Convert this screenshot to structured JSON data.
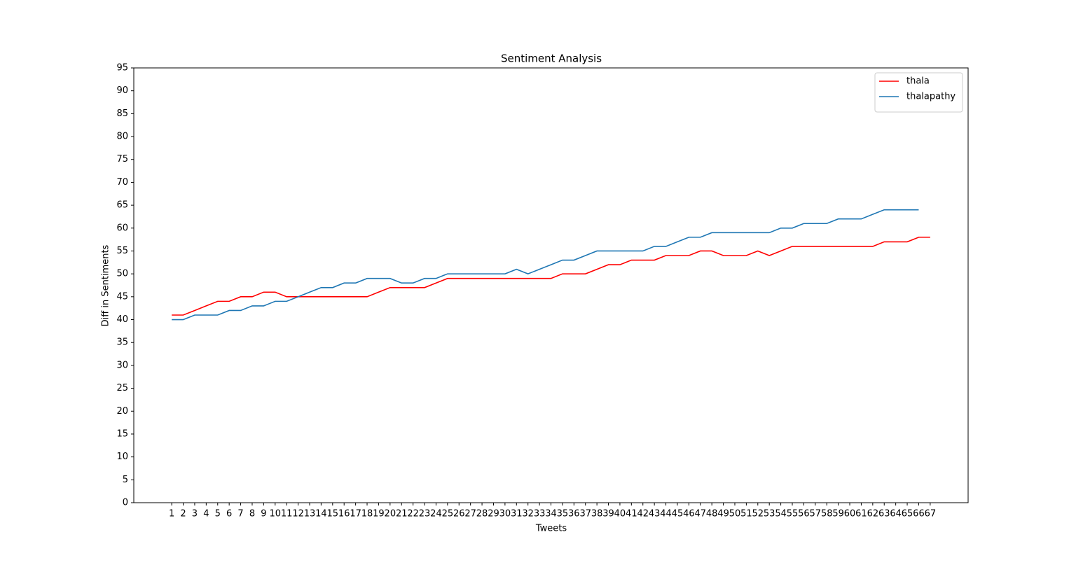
{
  "chart_data": {
    "type": "line",
    "title": "Sentiment Analysis",
    "x_label": "Tweets",
    "y_label": "Diff in Sentiments",
    "x": [
      1,
      2,
      3,
      4,
      5,
      6,
      7,
      8,
      9,
      10,
      11,
      12,
      13,
      14,
      15,
      16,
      17,
      18,
      19,
      20,
      21,
      22,
      23,
      24,
      25,
      26,
      27,
      28,
      29,
      30,
      31,
      32,
      33,
      34,
      35,
      36,
      37,
      38,
      39,
      40,
      41,
      42,
      43,
      44,
      45,
      46,
      47,
      48,
      49,
      50,
      51,
      52,
      53,
      54,
      55,
      56,
      57,
      58,
      59,
      60,
      61,
      62,
      63,
      64,
      65,
      66,
      67
    ],
    "series": [
      {
        "name": "thala",
        "color": "#ff0000",
        "values": [
          41,
          41,
          42,
          43,
          44,
          44,
          45,
          45,
          46,
          46,
          45,
          45,
          45,
          45,
          45,
          45,
          45,
          45,
          46,
          47,
          47,
          47,
          47,
          48,
          49,
          49,
          49,
          49,
          49,
          49,
          49,
          49,
          49,
          49,
          50,
          50,
          50,
          51,
          52,
          52,
          53,
          53,
          53,
          54,
          54,
          54,
          55,
          55,
          54,
          54,
          54,
          55,
          54,
          55,
          56,
          56,
          56,
          56,
          56,
          56,
          56,
          56,
          57,
          57,
          57,
          58,
          58
        ]
      },
      {
        "name": "thalapathy",
        "color": "#1f77b4",
        "values": [
          40,
          40,
          41,
          41,
          41,
          42,
          42,
          43,
          43,
          44,
          44,
          45,
          46,
          47,
          47,
          48,
          48,
          49,
          49,
          49,
          48,
          48,
          49,
          49,
          50,
          50,
          50,
          50,
          50,
          50,
          51,
          50,
          51,
          52,
          53,
          53,
          54,
          55,
          55,
          55,
          55,
          55,
          56,
          56,
          57,
          58,
          58,
          59,
          59,
          59,
          59,
          59,
          59,
          60,
          60,
          61,
          61,
          61,
          62,
          62,
          62,
          63,
          64,
          64,
          64,
          64,
          null
        ]
      }
    ],
    "xlim": [
      -2.3,
      70.3
    ],
    "xticks": [
      1,
      2,
      3,
      4,
      5,
      6,
      7,
      8,
      9,
      10,
      11,
      12,
      13,
      14,
      15,
      16,
      17,
      18,
      19,
      20,
      21,
      22,
      23,
      24,
      25,
      26,
      27,
      28,
      29,
      30,
      31,
      32,
      33,
      34,
      35,
      36,
      37,
      38,
      39,
      40,
      41,
      42,
      43,
      44,
      45,
      46,
      47,
      48,
      49,
      50,
      51,
      52,
      53,
      54,
      55,
      56,
      57,
      58,
      59,
      60,
      61,
      62,
      63,
      64,
      65,
      66,
      67
    ],
    "ylim": [
      0,
      95
    ],
    "yticks": [
      0,
      5,
      10,
      15,
      20,
      25,
      30,
      35,
      40,
      45,
      50,
      55,
      60,
      65,
      70,
      75,
      80,
      85,
      90,
      95
    ],
    "legend": "upper right",
    "grid": false
  }
}
